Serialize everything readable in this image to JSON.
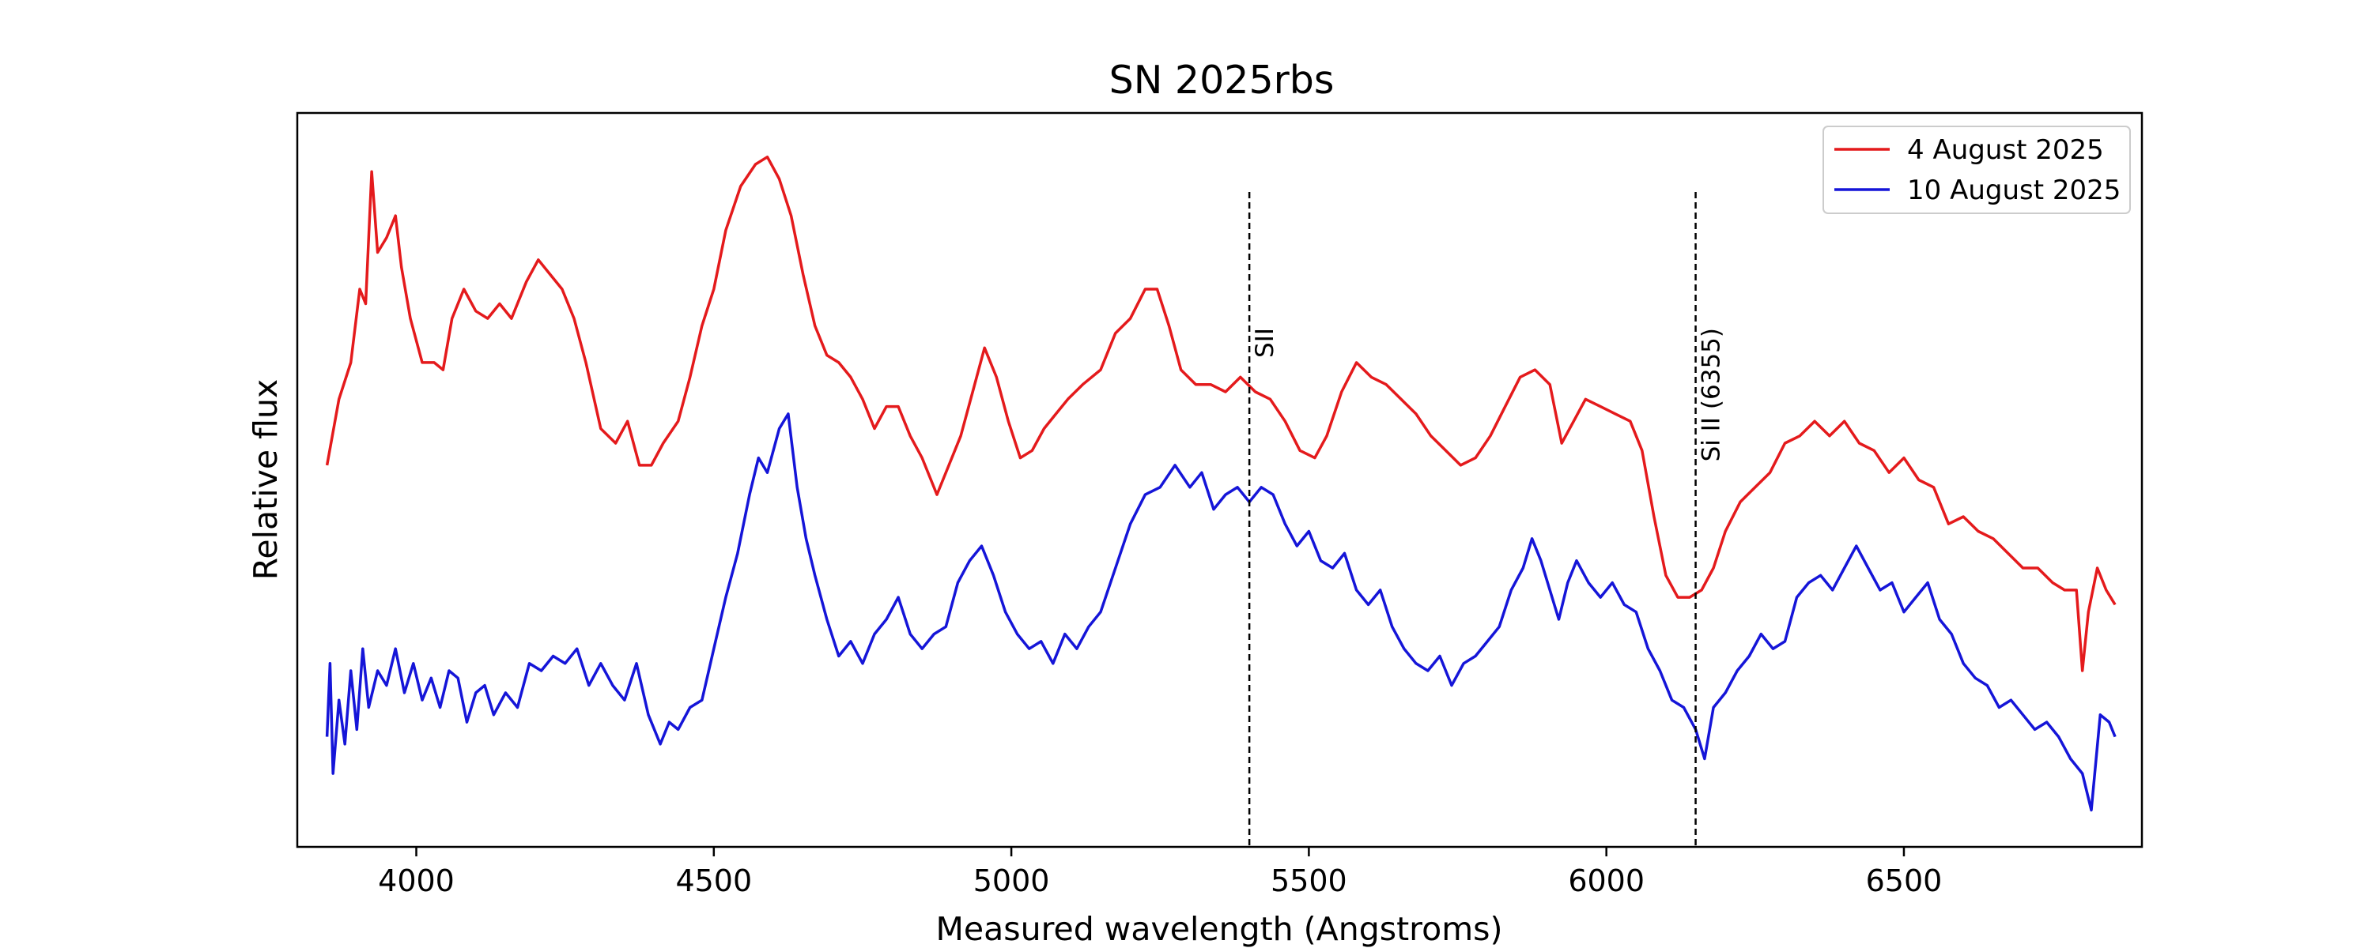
{
  "chart_data": {
    "type": "line",
    "title": "SN 2025rbs",
    "xlabel": "Measured wavelength (Angstroms)",
    "ylabel": "Relative flux",
    "xlim": [
      3800,
      6900
    ],
    "ylim": [
      0.0,
      1.0
    ],
    "x_ticks": [
      4000,
      4500,
      5000,
      5500,
      6000,
      6500
    ],
    "y_ticks_shown": false,
    "grid": false,
    "legend_position": "top-right",
    "series": [
      {
        "name": "4 August 2025",
        "color": "#e41a1c",
        "points": [
          [
            3850,
            0.52
          ],
          [
            3870,
            0.61
          ],
          [
            3890,
            0.66
          ],
          [
            3905,
            0.76
          ],
          [
            3915,
            0.74
          ],
          [
            3925,
            0.92
          ],
          [
            3935,
            0.81
          ],
          [
            3950,
            0.83
          ],
          [
            3965,
            0.86
          ],
          [
            3975,
            0.79
          ],
          [
            3990,
            0.72
          ],
          [
            4010,
            0.66
          ],
          [
            4030,
            0.66
          ],
          [
            4045,
            0.65
          ],
          [
            4060,
            0.72
          ],
          [
            4080,
            0.76
          ],
          [
            4100,
            0.73
          ],
          [
            4120,
            0.72
          ],
          [
            4140,
            0.74
          ],
          [
            4160,
            0.72
          ],
          [
            4185,
            0.77
          ],
          [
            4205,
            0.8
          ],
          [
            4225,
            0.78
          ],
          [
            4245,
            0.76
          ],
          [
            4265,
            0.72
          ],
          [
            4285,
            0.66
          ],
          [
            4310,
            0.57
          ],
          [
            4335,
            0.55
          ],
          [
            4355,
            0.58
          ],
          [
            4375,
            0.52
          ],
          [
            4395,
            0.52
          ],
          [
            4415,
            0.55
          ],
          [
            4440,
            0.58
          ],
          [
            4460,
            0.64
          ],
          [
            4480,
            0.71
          ],
          [
            4500,
            0.76
          ],
          [
            4520,
            0.84
          ],
          [
            4545,
            0.9
          ],
          [
            4570,
            0.93
          ],
          [
            4590,
            0.94
          ],
          [
            4610,
            0.91
          ],
          [
            4630,
            0.86
          ],
          [
            4650,
            0.78
          ],
          [
            4670,
            0.71
          ],
          [
            4690,
            0.67
          ],
          [
            4710,
            0.66
          ],
          [
            4730,
            0.64
          ],
          [
            4750,
            0.61
          ],
          [
            4770,
            0.57
          ],
          [
            4790,
            0.6
          ],
          [
            4810,
            0.6
          ],
          [
            4830,
            0.56
          ],
          [
            4850,
            0.53
          ],
          [
            4875,
            0.48
          ],
          [
            4895,
            0.52
          ],
          [
            4915,
            0.56
          ],
          [
            4935,
            0.62
          ],
          [
            4955,
            0.68
          ],
          [
            4975,
            0.64
          ],
          [
            4995,
            0.58
          ],
          [
            5015,
            0.53
          ],
          [
            5035,
            0.54
          ],
          [
            5055,
            0.57
          ],
          [
            5075,
            0.59
          ],
          [
            5095,
            0.61
          ],
          [
            5120,
            0.63
          ],
          [
            5150,
            0.65
          ],
          [
            5175,
            0.7
          ],
          [
            5200,
            0.72
          ],
          [
            5225,
            0.76
          ],
          [
            5245,
            0.76
          ],
          [
            5265,
            0.71
          ],
          [
            5285,
            0.65
          ],
          [
            5310,
            0.63
          ],
          [
            5335,
            0.63
          ],
          [
            5360,
            0.62
          ],
          [
            5385,
            0.64
          ],
          [
            5410,
            0.62
          ],
          [
            5435,
            0.61
          ],
          [
            5460,
            0.58
          ],
          [
            5485,
            0.54
          ],
          [
            5510,
            0.53
          ],
          [
            5530,
            0.56
          ],
          [
            5555,
            0.62
          ],
          [
            5580,
            0.66
          ],
          [
            5605,
            0.64
          ],
          [
            5630,
            0.63
          ],
          [
            5655,
            0.61
          ],
          [
            5680,
            0.59
          ],
          [
            5705,
            0.56
          ],
          [
            5730,
            0.54
          ],
          [
            5755,
            0.52
          ],
          [
            5780,
            0.53
          ],
          [
            5805,
            0.56
          ],
          [
            5830,
            0.6
          ],
          [
            5855,
            0.64
          ],
          [
            5880,
            0.65
          ],
          [
            5905,
            0.63
          ],
          [
            5925,
            0.55
          ],
          [
            5945,
            0.58
          ],
          [
            5965,
            0.61
          ],
          [
            5990,
            0.6
          ],
          [
            6015,
            0.59
          ],
          [
            6040,
            0.58
          ],
          [
            6060,
            0.54
          ],
          [
            6080,
            0.45
          ],
          [
            6100,
            0.37
          ],
          [
            6120,
            0.34
          ],
          [
            6140,
            0.34
          ],
          [
            6160,
            0.35
          ],
          [
            6180,
            0.38
          ],
          [
            6200,
            0.43
          ],
          [
            6225,
            0.47
          ],
          [
            6250,
            0.49
          ],
          [
            6275,
            0.51
          ],
          [
            6300,
            0.55
          ],
          [
            6325,
            0.56
          ],
          [
            6350,
            0.58
          ],
          [
            6375,
            0.56
          ],
          [
            6400,
            0.58
          ],
          [
            6425,
            0.55
          ],
          [
            6450,
            0.54
          ],
          [
            6475,
            0.51
          ],
          [
            6500,
            0.53
          ],
          [
            6525,
            0.5
          ],
          [
            6550,
            0.49
          ],
          [
            6575,
            0.44
          ],
          [
            6600,
            0.45
          ],
          [
            6625,
            0.43
          ],
          [
            6650,
            0.42
          ],
          [
            6675,
            0.4
          ],
          [
            6700,
            0.38
          ],
          [
            6725,
            0.38
          ],
          [
            6750,
            0.36
          ],
          [
            6770,
            0.35
          ],
          [
            6790,
            0.35
          ],
          [
            6800,
            0.24
          ],
          [
            6810,
            0.32
          ],
          [
            6825,
            0.38
          ],
          [
            6840,
            0.35
          ],
          [
            6855,
            0.33
          ]
        ]
      },
      {
        "name": "10 August 2025",
        "color": "#1515d8",
        "points": [
          [
            3850,
            0.15
          ],
          [
            3855,
            0.25
          ],
          [
            3860,
            0.1
          ],
          [
            3870,
            0.2
          ],
          [
            3880,
            0.14
          ],
          [
            3890,
            0.24
          ],
          [
            3900,
            0.16
          ],
          [
            3910,
            0.27
          ],
          [
            3920,
            0.19
          ],
          [
            3935,
            0.24
          ],
          [
            3950,
            0.22
          ],
          [
            3965,
            0.27
          ],
          [
            3980,
            0.21
          ],
          [
            3995,
            0.25
          ],
          [
            4010,
            0.2
          ],
          [
            4025,
            0.23
          ],
          [
            4040,
            0.19
          ],
          [
            4055,
            0.24
          ],
          [
            4070,
            0.23
          ],
          [
            4085,
            0.17
          ],
          [
            4100,
            0.21
          ],
          [
            4115,
            0.22
          ],
          [
            4130,
            0.18
          ],
          [
            4150,
            0.21
          ],
          [
            4170,
            0.19
          ],
          [
            4190,
            0.25
          ],
          [
            4210,
            0.24
          ],
          [
            4230,
            0.26
          ],
          [
            4250,
            0.25
          ],
          [
            4270,
            0.27
          ],
          [
            4290,
            0.22
          ],
          [
            4310,
            0.25
          ],
          [
            4330,
            0.22
          ],
          [
            4350,
            0.2
          ],
          [
            4370,
            0.25
          ],
          [
            4390,
            0.18
          ],
          [
            4410,
            0.14
          ],
          [
            4425,
            0.17
          ],
          [
            4440,
            0.16
          ],
          [
            4460,
            0.19
          ],
          [
            4480,
            0.2
          ],
          [
            4500,
            0.27
          ],
          [
            4520,
            0.34
          ],
          [
            4540,
            0.4
          ],
          [
            4560,
            0.48
          ],
          [
            4575,
            0.53
          ],
          [
            4590,
            0.51
          ],
          [
            4610,
            0.57
          ],
          [
            4625,
            0.59
          ],
          [
            4640,
            0.49
          ],
          [
            4655,
            0.42
          ],
          [
            4670,
            0.37
          ],
          [
            4690,
            0.31
          ],
          [
            4710,
            0.26
          ],
          [
            4730,
            0.28
          ],
          [
            4750,
            0.25
          ],
          [
            4770,
            0.29
          ],
          [
            4790,
            0.31
          ],
          [
            4810,
            0.34
          ],
          [
            4830,
            0.29
          ],
          [
            4850,
            0.27
          ],
          [
            4870,
            0.29
          ],
          [
            4890,
            0.3
          ],
          [
            4910,
            0.36
          ],
          [
            4930,
            0.39
          ],
          [
            4950,
            0.41
          ],
          [
            4970,
            0.37
          ],
          [
            4990,
            0.32
          ],
          [
            5010,
            0.29
          ],
          [
            5030,
            0.27
          ],
          [
            5050,
            0.28
          ],
          [
            5070,
            0.25
          ],
          [
            5090,
            0.29
          ],
          [
            5110,
            0.27
          ],
          [
            5130,
            0.3
          ],
          [
            5150,
            0.32
          ],
          [
            5175,
            0.38
          ],
          [
            5200,
            0.44
          ],
          [
            5225,
            0.48
          ],
          [
            5250,
            0.49
          ],
          [
            5275,
            0.52
          ],
          [
            5300,
            0.49
          ],
          [
            5320,
            0.51
          ],
          [
            5340,
            0.46
          ],
          [
            5360,
            0.48
          ],
          [
            5380,
            0.49
          ],
          [
            5400,
            0.47
          ],
          [
            5420,
            0.49
          ],
          [
            5440,
            0.48
          ],
          [
            5460,
            0.44
          ],
          [
            5480,
            0.41
          ],
          [
            5500,
            0.43
          ],
          [
            5520,
            0.39
          ],
          [
            5540,
            0.38
          ],
          [
            5560,
            0.4
          ],
          [
            5580,
            0.35
          ],
          [
            5600,
            0.33
          ],
          [
            5620,
            0.35
          ],
          [
            5640,
            0.3
          ],
          [
            5660,
            0.27
          ],
          [
            5680,
            0.25
          ],
          [
            5700,
            0.24
          ],
          [
            5720,
            0.26
          ],
          [
            5740,
            0.22
          ],
          [
            5760,
            0.25
          ],
          [
            5780,
            0.26
          ],
          [
            5800,
            0.28
          ],
          [
            5820,
            0.3
          ],
          [
            5840,
            0.35
          ],
          [
            5860,
            0.38
          ],
          [
            5875,
            0.42
          ],
          [
            5890,
            0.39
          ],
          [
            5905,
            0.35
          ],
          [
            5920,
            0.31
          ],
          [
            5935,
            0.36
          ],
          [
            5950,
            0.39
          ],
          [
            5970,
            0.36
          ],
          [
            5990,
            0.34
          ],
          [
            6010,
            0.36
          ],
          [
            6030,
            0.33
          ],
          [
            6050,
            0.32
          ],
          [
            6070,
            0.27
          ],
          [
            6090,
            0.24
          ],
          [
            6110,
            0.2
          ],
          [
            6130,
            0.19
          ],
          [
            6150,
            0.16
          ],
          [
            6165,
            0.12
          ],
          [
            6180,
            0.19
          ],
          [
            6200,
            0.21
          ],
          [
            6220,
            0.24
          ],
          [
            6240,
            0.26
          ],
          [
            6260,
            0.29
          ],
          [
            6280,
            0.27
          ],
          [
            6300,
            0.28
          ],
          [
            6320,
            0.34
          ],
          [
            6340,
            0.36
          ],
          [
            6360,
            0.37
          ],
          [
            6380,
            0.35
          ],
          [
            6400,
            0.38
          ],
          [
            6420,
            0.41
          ],
          [
            6440,
            0.38
          ],
          [
            6460,
            0.35
          ],
          [
            6480,
            0.36
          ],
          [
            6500,
            0.32
          ],
          [
            6520,
            0.34
          ],
          [
            6540,
            0.36
          ],
          [
            6560,
            0.31
          ],
          [
            6580,
            0.29
          ],
          [
            6600,
            0.25
          ],
          [
            6620,
            0.23
          ],
          [
            6640,
            0.22
          ],
          [
            6660,
            0.19
          ],
          [
            6680,
            0.2
          ],
          [
            6700,
            0.18
          ],
          [
            6720,
            0.16
          ],
          [
            6740,
            0.17
          ],
          [
            6760,
            0.15
          ],
          [
            6780,
            0.12
          ],
          [
            6800,
            0.1
          ],
          [
            6815,
            0.05
          ],
          [
            6830,
            0.18
          ],
          [
            6845,
            0.17
          ],
          [
            6855,
            0.15
          ]
        ]
      }
    ],
    "annotations": [
      {
        "x": 5400,
        "text": "SII",
        "style": "dashed",
        "color": "#000000"
      },
      {
        "x": 6150,
        "text": "Si II (6355)",
        "style": "dashed",
        "color": "#000000"
      }
    ]
  }
}
